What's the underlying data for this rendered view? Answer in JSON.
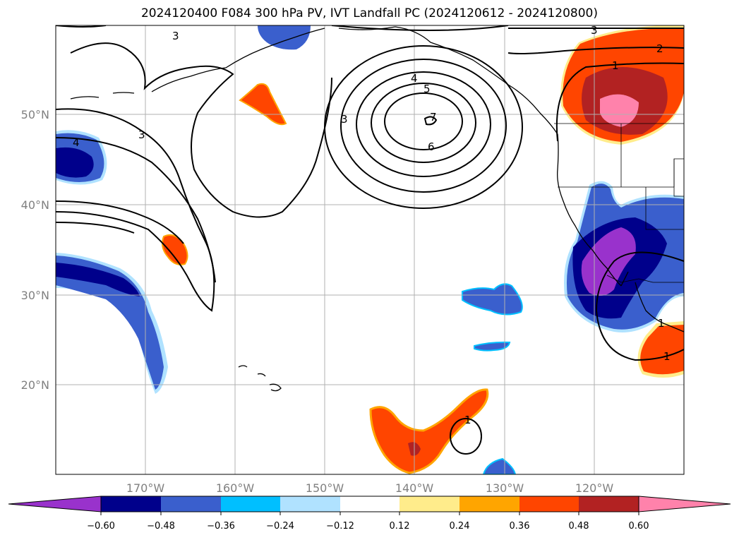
{
  "title": "2024120400 F084 300 hPa PV, IVT Landfall PC (2024120612 - 2024120800)",
  "map": {
    "lon_labels": [
      "170°W",
      "160°W",
      "150°W",
      "140°W",
      "130°W",
      "120°W"
    ],
    "lat_labels": [
      "50°N",
      "40°N",
      "30°N",
      "20°N"
    ],
    "gridlines": true,
    "pv_contour_labels": [
      "3",
      "3",
      "3",
      "4",
      "5",
      "6",
      "7",
      "4",
      "3",
      "2",
      "1",
      "1",
      "1",
      "1"
    ]
  },
  "colorbar": {
    "ticks": [
      "−0.60",
      "−0.48",
      "−0.36",
      "−0.24",
      "−0.12",
      "0.12",
      "0.24",
      "0.36",
      "0.48",
      "0.60"
    ],
    "colors": [
      "#9932cc",
      "#00008b",
      "#3a5fcd",
      "#00bfff",
      "#b0e2ff",
      "#ffffff",
      "#ffec8b",
      "#ffa500",
      "#ff4500",
      "#b22222",
      "#ff82ab"
    ]
  }
}
